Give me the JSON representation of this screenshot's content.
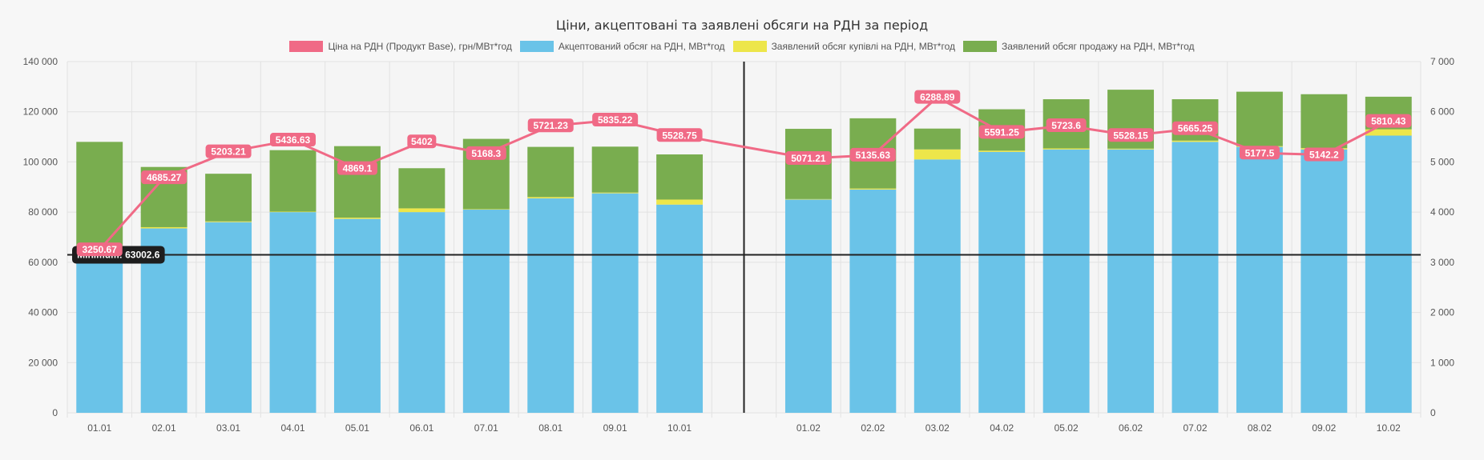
{
  "chart_data": {
    "type": "bar",
    "title": "Ціни, акцептовані та заявлені обсяги на РДН за період",
    "stacked": true,
    "categories": [
      "01.01",
      "02.01",
      "03.01",
      "04.01",
      "05.01",
      "06.01",
      "07.01",
      "08.01",
      "09.01",
      "10.01",
      "01.02",
      "02.02",
      "03.02",
      "04.02",
      "05.02",
      "06.02",
      "07.02",
      "08.02",
      "09.02",
      "10.02"
    ],
    "gap_after_index": 9,
    "y_left": {
      "min": 0,
      "max": 140000,
      "ticks": [
        "0",
        "20 000",
        "40 000",
        "60 000",
        "80 000",
        "100 000",
        "120 000",
        "140 000"
      ],
      "tick_values": [
        0,
        20000,
        40000,
        60000,
        80000,
        100000,
        120000,
        140000
      ]
    },
    "y_right": {
      "min": 0,
      "max": 7000,
      "ticks": [
        "0",
        "1 000",
        "2 000",
        "3 000",
        "4 000",
        "5 000",
        "6 000",
        "7 000"
      ],
      "tick_values": [
        0,
        1000,
        2000,
        3000,
        4000,
        5000,
        6000,
        7000
      ]
    },
    "grid": true,
    "legend_position": "top-center",
    "series": [
      {
        "name": "Ціна на РДН (Продукт Base), грн/МВт*год",
        "kind": "line",
        "axis": "right",
        "color": "#f06a86",
        "values": [
          3250.67,
          4685.27,
          5203.21,
          5436.63,
          4869.1,
          5402,
          5168.3,
          5721.23,
          5835.22,
          5528.75,
          5071.21,
          5135.63,
          6288.89,
          5591.25,
          5723.6,
          5528.15,
          5665.25,
          5177.5,
          5142.2,
          5810.43
        ],
        "labels": [
          "3250.67",
          "4685.27",
          "5203.21",
          "5436.63",
          "4869.1",
          "5402",
          "5168.3",
          "5721.23",
          "5835.22",
          "5528.75",
          "5071.21",
          "5135.63",
          "6288.89",
          "5591.25",
          "5723.6",
          "5528.15",
          "5665.25",
          "5177.5",
          "5142.2",
          "5810.43"
        ]
      },
      {
        "name": "Акцептований обсяг на РДН, МВт*год",
        "kind": "bar",
        "axis": "left",
        "color": "#6ac3e8",
        "values": [
          64000,
          73500,
          76000,
          80000,
          77300,
          80000,
          81000,
          85500,
          87500,
          83000,
          85000,
          89000,
          101000,
          104000,
          105000,
          105000,
          108000,
          106000,
          105000,
          110500
        ]
      },
      {
        "name": "Заявлений обсяг купівлі на РДН, МВт*год",
        "kind": "bar",
        "axis": "left",
        "color": "#ede64a",
        "values": [
          0,
          500,
          300,
          200,
          500,
          1500,
          200,
          500,
          300,
          2000,
          200,
          400,
          4000,
          500,
          400,
          300,
          500,
          300,
          500,
          2500
        ]
      },
      {
        "name": "Заявлений обсяг продажу на РДН, МВт*год",
        "kind": "bar",
        "axis": "left",
        "color": "#79ad4f",
        "values": [
          44000,
          24000,
          19000,
          24500,
          28500,
          16000,
          28000,
          20000,
          18300,
          18000,
          28000,
          28000,
          8300,
          16500,
          19600,
          23500,
          16500,
          21700,
          21500,
          13000
        ]
      }
    ],
    "annotations": [
      {
        "type": "horizontal-line",
        "axis": "left",
        "value": 63002.6,
        "label": "Minimum: 63002.6",
        "color": "#222222"
      },
      {
        "type": "vertical-line",
        "after_index": 9,
        "color": "#222222"
      }
    ]
  }
}
